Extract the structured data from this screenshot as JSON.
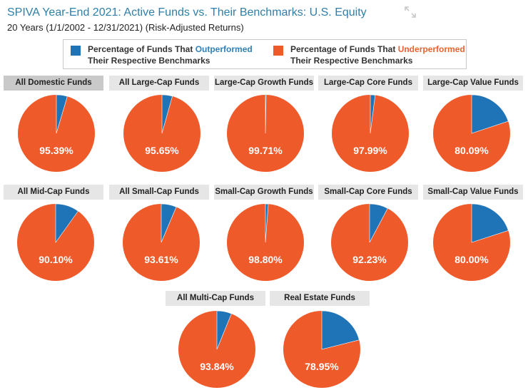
{
  "header": {
    "title": "SPIVA Year-End 2021: Active Funds vs. Their Benchmarks: U.S. Equity",
    "subtitle": "20 Years (1/1/2002 - 12/31/2021) (Risk-Adjusted Returns)",
    "expand_icon": "expand-icon"
  },
  "legend": {
    "outperformed": {
      "prefix": "Percentage of Funds That ",
      "highlight": "Outperformed",
      "line2": "Their Respective Benchmarks",
      "color": "#1f74b8"
    },
    "underperformed": {
      "prefix": "Percentage of Funds That ",
      "highlight": "Underperformed",
      "line2": "Their Respective Benchmarks",
      "color": "#ef5a2a"
    }
  },
  "chart_data": {
    "type": "pie",
    "title": "SPIVA Year-End 2021: Active Funds vs. Their Benchmarks: U.S. Equity",
    "series_names": [
      "Outperformed",
      "Underperformed"
    ],
    "colors": {
      "outperformed": "#1f74b8",
      "underperformed": "#ef5a2a"
    },
    "charts": [
      {
        "label": "All Domestic Funds",
        "underperformed": 95.39,
        "outperformed": 4.61,
        "pct_label": "95.39%",
        "selected": true
      },
      {
        "label": "All Large-Cap Funds",
        "underperformed": 95.65,
        "outperformed": 4.35,
        "pct_label": "95.65%"
      },
      {
        "label": "Large-Cap Growth Funds",
        "underperformed": 99.71,
        "outperformed": 0.29,
        "pct_label": "99.71%"
      },
      {
        "label": "Large-Cap Core Funds",
        "underperformed": 97.99,
        "outperformed": 2.01,
        "pct_label": "97.99%"
      },
      {
        "label": "Large-Cap Value Funds",
        "underperformed": 80.09,
        "outperformed": 19.91,
        "pct_label": "80.09%"
      },
      {
        "label": "All Mid-Cap Funds",
        "underperformed": 90.1,
        "outperformed": 9.9,
        "pct_label": "90.10%"
      },
      {
        "label": "All Small-Cap Funds",
        "underperformed": 93.61,
        "outperformed": 6.39,
        "pct_label": "93.61%"
      },
      {
        "label": "Small-Cap Growth Funds",
        "underperformed": 98.8,
        "outperformed": 1.2,
        "pct_label": "98.80%"
      },
      {
        "label": "Small-Cap Core Funds",
        "underperformed": 92.23,
        "outperformed": 7.77,
        "pct_label": "92.23%"
      },
      {
        "label": "Small-Cap Value Funds",
        "underperformed": 80.0,
        "outperformed": 20.0,
        "pct_label": "80.00%"
      },
      {
        "label": "All Multi-Cap Funds",
        "underperformed": 93.84,
        "outperformed": 6.16,
        "pct_label": "93.84%"
      },
      {
        "label": "Real Estate Funds",
        "underperformed": 78.95,
        "outperformed": 21.05,
        "pct_label": "78.95%"
      }
    ]
  }
}
